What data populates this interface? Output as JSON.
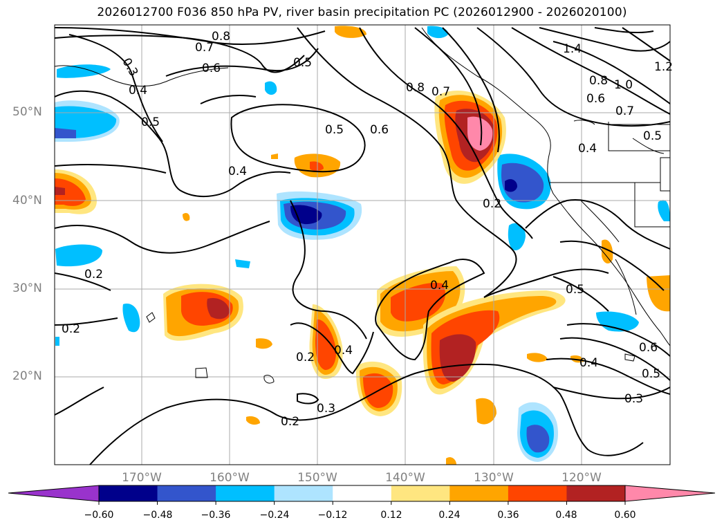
{
  "title": "2026012700 F036 850 hPa PV, river basin precipitation PC (2026012900 - 2026020100)",
  "lat_labels": [
    "50°N",
    "40°N",
    "30°N",
    "20°N"
  ],
  "lon_labels": [
    "170°W",
    "160°W",
    "150°W",
    "140°W",
    "130°W",
    "120°W"
  ],
  "colorbar": {
    "ticks": [
      "−0.60",
      "−0.48",
      "−0.36",
      "−0.24",
      "−0.12",
      "0.12",
      "0.24",
      "0.36",
      "0.48",
      "0.60"
    ],
    "colors": [
      "#9933cc",
      "#00008b",
      "#3355cc",
      "#00bfff",
      "#aee4ff",
      "#ffffff",
      "#ffe680",
      "#ffa500",
      "#ff4500",
      "#b22222",
      "#ff88aa"
    ]
  },
  "contour_labels": [
    "0.8",
    "0.7",
    "0.3",
    "0.6",
    "0.4",
    "0.5",
    "0.5",
    "0.8",
    "0.7",
    "1.4",
    "1.2",
    "0.8",
    "1.0",
    "0.6",
    "0.7",
    "0.5",
    "0.5",
    "0.6",
    "0.4",
    "0.4",
    "0.2",
    "0.4",
    "0.2",
    "0.2",
    "0.4",
    "0.2",
    "0.5",
    "0.6",
    "0.5",
    "0.4",
    "0.3",
    "0.3",
    "0.2"
  ]
}
